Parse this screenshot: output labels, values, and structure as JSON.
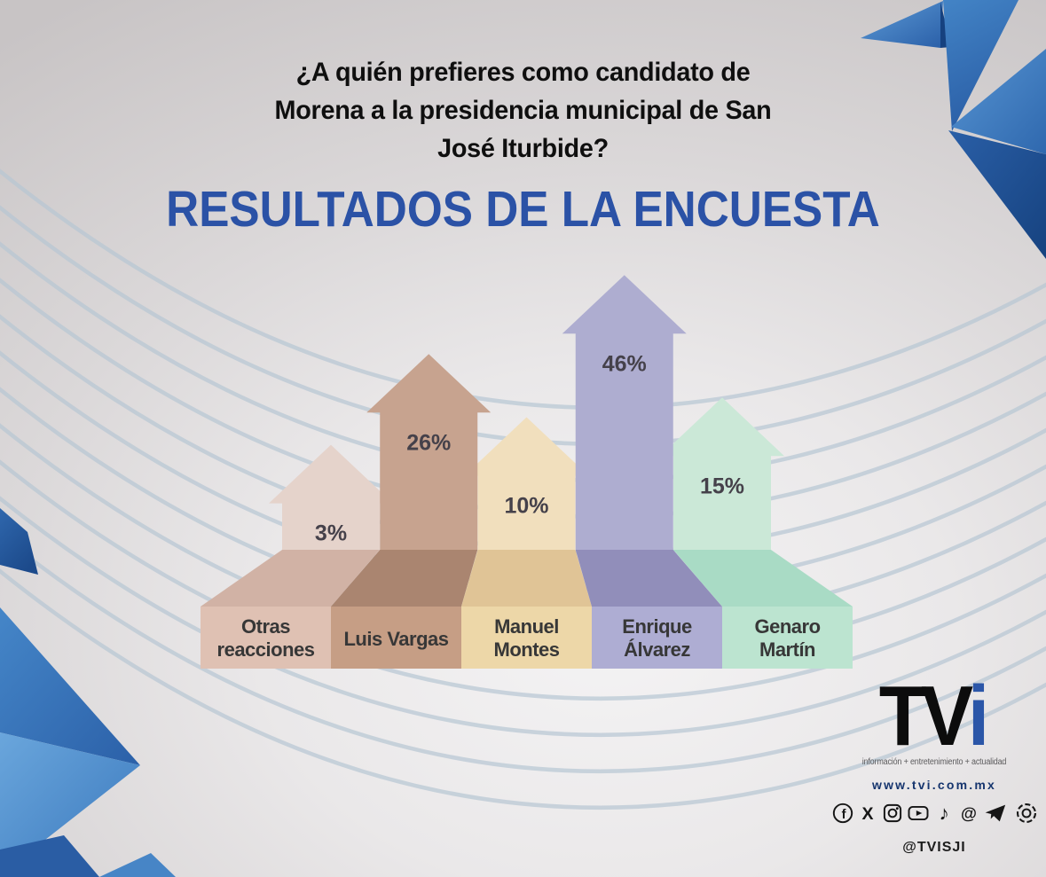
{
  "question": "¿A quién prefieres como candidato de Morena a la presidencia municipal de San José Iturbide?",
  "question_lines": [
    "¿A quién prefieres como candidato de",
    "Morena a la presidencia municipal de San",
    "José Iturbide?"
  ],
  "heading": "RESULTADOS DE LA ENCUESTA",
  "chart_data": {
    "type": "bar",
    "variant": "upward-arrow-pictogram-with-3d-pedestal",
    "title": "RESULTADOS DE LA ENCUESTA",
    "categories": [
      "Otras reacciones",
      "Luis Vargas",
      "Manuel Montes",
      "Enrique Álvarez",
      "Genaro Martín"
    ],
    "category_lines": [
      [
        "Otras",
        "reacciones"
      ],
      [
        "Luis Vargas"
      ],
      [
        "Manuel",
        "Montes"
      ],
      [
        "Enrique",
        "Álvarez"
      ],
      [
        "Genaro",
        "Martín"
      ]
    ],
    "values": [
      3,
      26,
      10,
      46,
      15
    ],
    "value_labels": [
      "3%",
      "26%",
      "10%",
      "46%",
      "15%"
    ],
    "unit": "%",
    "xlabel": "",
    "ylabel": "",
    "legend": "none",
    "axes": "none",
    "bar_colors": [
      "#e5d3cb",
      "#c7a38f",
      "#f1dfbd",
      "#aeadd0",
      "#cbe8d7"
    ],
    "base_colors": [
      "#d1b2a5",
      "#aa8570",
      "#e0c496",
      "#918eba",
      "#a9dbc5"
    ],
    "box_colors": [
      "#dfc1b3",
      "#c69e85",
      "#edd7a8",
      "#aeadd3",
      "#bce4d0"
    ],
    "value_text_color": "#45414a",
    "label_text_color": "#373737"
  },
  "footer": {
    "logo": {
      "part_black": "TV",
      "part_blue": "i"
    },
    "tagline": "información + entretenimiento + actualidad",
    "website": "www.tvi.com.mx",
    "handle": "@TVISJI",
    "social": [
      {
        "name": "facebook"
      },
      {
        "name": "x"
      },
      {
        "name": "instagram"
      },
      {
        "name": "youtube"
      },
      {
        "name": "tiktok"
      },
      {
        "name": "threads"
      },
      {
        "name": "telegram"
      },
      {
        "name": "whatsapp"
      }
    ]
  },
  "colors": {
    "heading_blue": "#2b52a6",
    "question_black": "#0f0f0f",
    "logo_i_blue": "#2b56a8",
    "website_blue": "#16356e",
    "wave_line": "#b7c6d3",
    "origami_dark": "#16427f",
    "origami_mid": "#2f68ae",
    "origami_light": "#5d9bd6"
  }
}
